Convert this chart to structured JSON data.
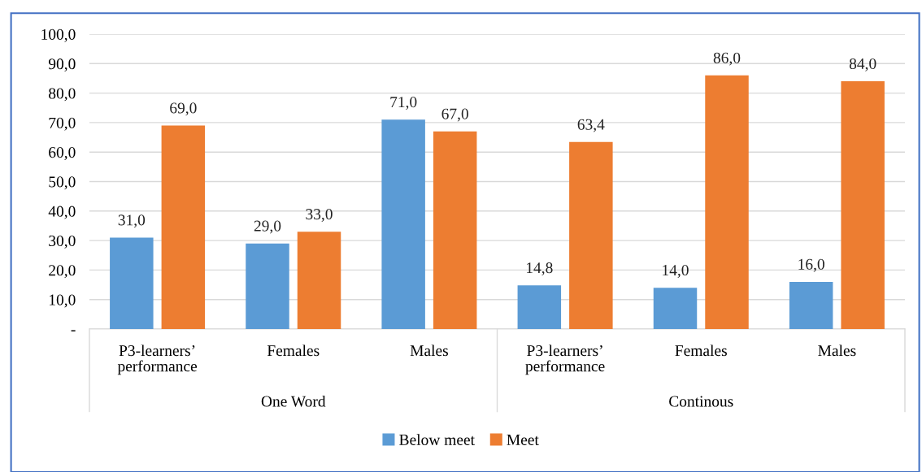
{
  "chart_data": {
    "type": "bar",
    "categories": [
      "P3-learners’\nperformance",
      "Females",
      "Males",
      "P3-learners’\nperformance",
      "Females",
      "Males"
    ],
    "series": [
      {
        "name": "Below meet",
        "color": "#5b9bd5",
        "values": [
          31.0,
          29.0,
          71.0,
          14.8,
          14.0,
          16.0
        ],
        "value_labels": [
          "31,0",
          "29,0",
          "71,0",
          "14,8",
          "14,0",
          "16,0"
        ]
      },
      {
        "name": "Meet",
        "color": "#ed7d31",
        "values": [
          69.0,
          33.0,
          67.0,
          63.4,
          86.0,
          84.0
        ],
        "value_labels": [
          "69,0",
          "33,0",
          "67,0",
          "63,4",
          "86,0",
          "84,0"
        ]
      }
    ],
    "annotations": [
      "One Word",
      "Continous"
    ],
    "ylim": [
      0,
      100
    ],
    "yticks": [
      {
        "value": 0,
        "label": "-"
      },
      {
        "value": 10,
        "label": "10,0"
      },
      {
        "value": 20,
        "label": "20,0"
      },
      {
        "value": 30,
        "label": "30,0"
      },
      {
        "value": 40,
        "label": "40,0"
      },
      {
        "value": 50,
        "label": "50,0"
      },
      {
        "value": 60,
        "label": "60,0"
      },
      {
        "value": 70,
        "label": "70,0"
      },
      {
        "value": 80,
        "label": "80,0"
      },
      {
        "value": 90,
        "label": "90,0"
      },
      {
        "value": 100,
        "label": "100,0"
      }
    ],
    "grid": "y",
    "legend": "bottom"
  }
}
